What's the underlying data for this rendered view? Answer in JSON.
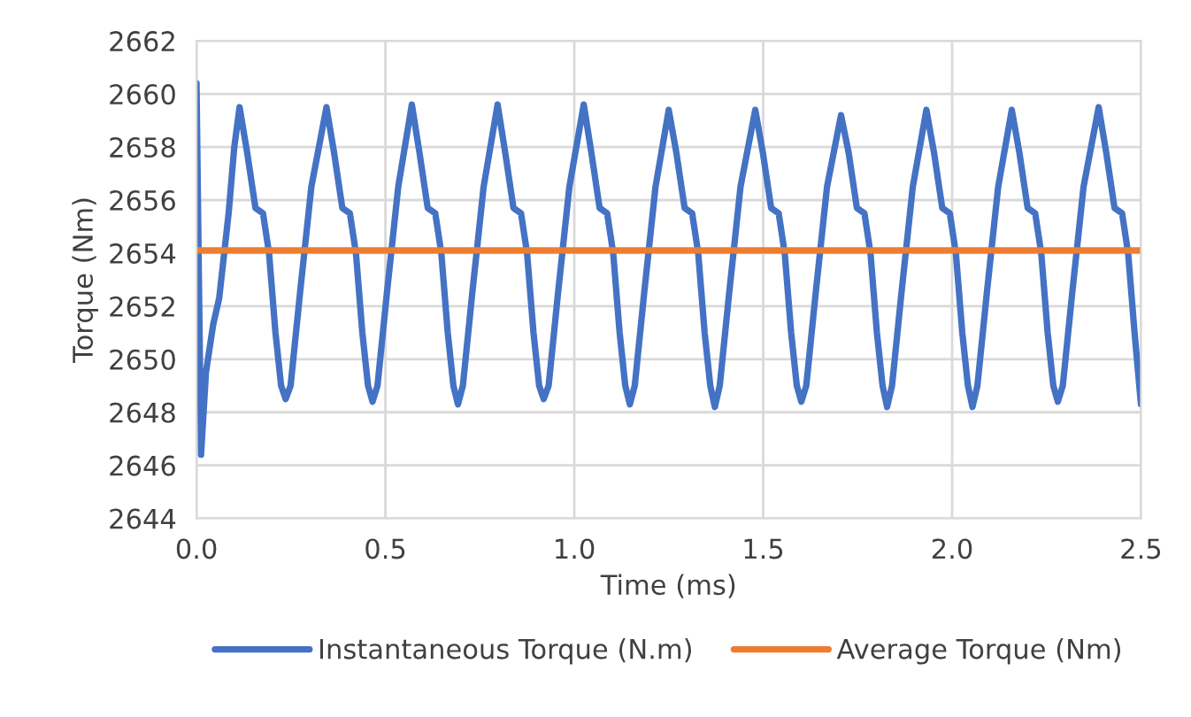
{
  "chart_data": {
    "type": "line",
    "xlabel": "Time (ms)",
    "ylabel": "Torque (Nm)",
    "xlim": [
      0,
      2.5
    ],
    "xticks": [
      {
        "value": 0,
        "label": "0.0"
      },
      {
        "value": 0.5,
        "label": "0.5"
      },
      {
        "value": 1,
        "label": "1.0"
      },
      {
        "value": 1.5,
        "label": "1.5"
      },
      {
        "value": 2,
        "label": "2.0"
      },
      {
        "value": 2.5,
        "label": "2.5"
      }
    ],
    "ylim": [
      2644,
      2662
    ],
    "yticks": [
      2644,
      2646,
      2648,
      2650,
      2652,
      2654,
      2656,
      2658,
      2660,
      2662
    ],
    "grid": true,
    "legend": "bottom",
    "marker": "none",
    "line_style": "solid",
    "series": [
      {
        "name": "Instantaneous Torque (N.m)",
        "color": "#4472c4",
        "x": [
          0,
          0.012,
          0.025,
          0.044,
          0.06,
          0.085,
          0.1,
          0.114,
          0.134,
          0.156,
          0.176,
          0.192,
          0.209,
          0.224,
          0.236,
          0.249,
          0.274,
          0.304,
          0.344,
          0.364,
          0.386,
          0.406,
          0.422,
          0.439,
          0.454,
          0.466,
          0.479,
          0.504,
          0.534,
          0.57,
          0.59,
          0.612,
          0.632,
          0.648,
          0.665,
          0.68,
          0.692,
          0.705,
          0.73,
          0.76,
          0.797,
          0.817,
          0.839,
          0.859,
          0.875,
          0.892,
          0.907,
          0.919,
          0.932,
          0.957,
          0.987,
          1.025,
          1.045,
          1.067,
          1.087,
          1.103,
          1.12,
          1.135,
          1.147,
          1.16,
          1.185,
          1.215,
          1.25,
          1.27,
          1.292,
          1.312,
          1.328,
          1.345,
          1.36,
          1.372,
          1.385,
          1.41,
          1.44,
          1.479,
          1.499,
          1.521,
          1.541,
          1.557,
          1.574,
          1.589,
          1.601,
          1.614,
          1.639,
          1.669,
          1.706,
          1.726,
          1.748,
          1.768,
          1.784,
          1.801,
          1.816,
          1.828,
          1.841,
          1.866,
          1.896,
          1.932,
          1.952,
          1.974,
          1.994,
          2.01,
          2.027,
          2.042,
          2.054,
          2.067,
          2.092,
          2.122,
          2.158,
          2.178,
          2.2,
          2.22,
          2.236,
          2.253,
          2.268,
          2.28,
          2.293,
          2.318,
          2.348,
          2.388,
          2.408,
          2.43,
          2.45,
          2.466,
          2.483,
          2.5
        ],
        "values": [
          2660.4,
          2646.4,
          2649.5,
          2651.3,
          2652.3,
          2655.5,
          2658.0,
          2659.5,
          2657.8,
          2655.7,
          2655.5,
          2654.0,
          2651.0,
          2649.0,
          2648.5,
          2649.0,
          2652.5,
          2656.5,
          2659.5,
          2657.8,
          2655.7,
          2655.5,
          2654.0,
          2651.0,
          2649.0,
          2648.4,
          2649.0,
          2652.5,
          2656.5,
          2659.6,
          2657.8,
          2655.7,
          2655.5,
          2654.0,
          2651.0,
          2649.0,
          2648.3,
          2649.0,
          2652.5,
          2656.5,
          2659.6,
          2657.8,
          2655.7,
          2655.5,
          2654.0,
          2651.0,
          2649.0,
          2648.5,
          2649.0,
          2652.5,
          2656.5,
          2659.6,
          2657.8,
          2655.7,
          2655.5,
          2654.0,
          2651.0,
          2649.0,
          2648.3,
          2649.0,
          2652.5,
          2656.5,
          2659.4,
          2657.8,
          2655.7,
          2655.5,
          2654.0,
          2651.0,
          2649.0,
          2648.2,
          2649.0,
          2652.5,
          2656.5,
          2659.4,
          2657.8,
          2655.7,
          2655.5,
          2654.0,
          2651.0,
          2649.0,
          2648.4,
          2649.0,
          2652.5,
          2656.5,
          2659.2,
          2657.8,
          2655.7,
          2655.5,
          2654.0,
          2651.0,
          2649.0,
          2648.2,
          2649.0,
          2652.5,
          2656.5,
          2659.4,
          2657.8,
          2655.7,
          2655.5,
          2654.0,
          2651.0,
          2649.0,
          2648.2,
          2649.0,
          2652.5,
          2656.5,
          2659.4,
          2657.8,
          2655.7,
          2655.5,
          2654.0,
          2651.0,
          2649.0,
          2648.4,
          2649.0,
          2652.5,
          2656.5,
          2659.5,
          2657.8,
          2655.7,
          2655.5,
          2654.0,
          2651.0,
          2648.3
        ]
      },
      {
        "name": "Average Torque (Nm)",
        "color": "#ed7d31",
        "x": [
          0,
          2.5
        ],
        "values": [
          2654.1,
          2654.1
        ]
      }
    ]
  }
}
